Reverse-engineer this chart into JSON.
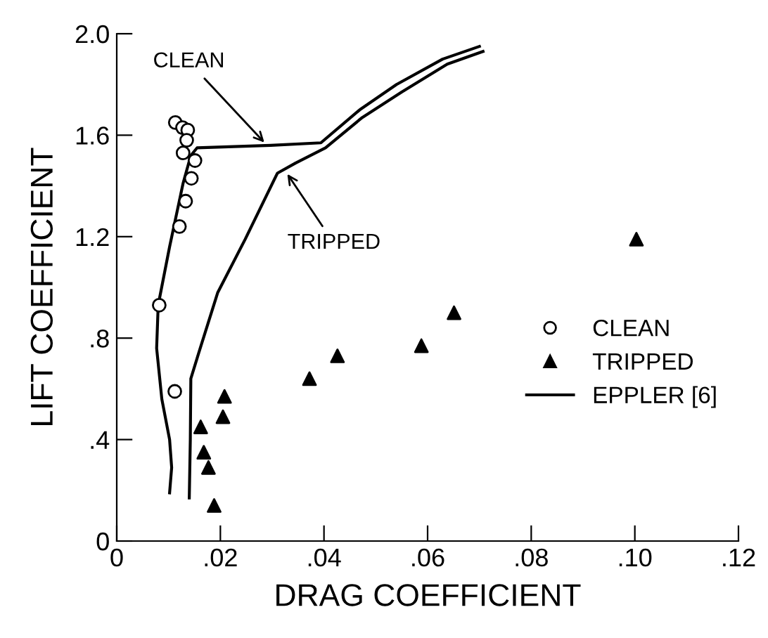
{
  "chart_data": {
    "type": "scatter",
    "xlabel": "DRAG COEFFICIENT",
    "ylabel": "LIFT COEFFICIENT",
    "series": [
      {
        "name": "CLEAN",
        "marker": "circle",
        "color": "#000000",
        "x": [
          0.0113,
          0.0127,
          0.0137,
          0.0135,
          0.0128,
          0.0151,
          0.0144,
          0.0133,
          0.0121,
          0.0082,
          0.0112
        ],
        "values": [
          1.65,
          1.63,
          1.62,
          1.58,
          1.53,
          1.5,
          1.43,
          1.34,
          1.24,
          0.93,
          0.59
        ]
      },
      {
        "name": "TRIPPED",
        "marker": "triangle",
        "color": "#000000",
        "x": [
          0.0162,
          0.0168,
          0.0177,
          0.0188,
          0.0208,
          0.0205,
          0.0372,
          0.0426,
          0.0588,
          0.0651,
          0.1003
        ],
        "values": [
          0.45,
          0.35,
          0.29,
          0.14,
          0.57,
          0.49,
          0.64,
          0.73,
          0.77,
          0.9,
          1.19
        ]
      },
      {
        "name": "EPPLER [6]",
        "type": "line",
        "marker": "none",
        "color": "#000000",
        "x": [
          0.0102,
          0.0106,
          0.0102,
          0.0087,
          0.0077,
          0.008,
          0.0102,
          0.0128,
          0.0143,
          0.0155,
          0.0297,
          0.0394,
          0.0469,
          0.054,
          0.0629,
          0.07
        ],
        "values": [
          0.19,
          0.29,
          0.4,
          0.56,
          0.76,
          0.93,
          1.16,
          1.41,
          1.52,
          1.55,
          1.56,
          1.57,
          1.7,
          1.8,
          1.9,
          1.95
        ]
      },
      {
        "type": "line",
        "marker": "none",
        "color": "#000000",
        "x": [
          0.014,
          0.0142,
          0.0143,
          0.0158,
          0.0195,
          0.0248,
          0.031,
          0.0345,
          0.0403,
          0.0474,
          0.055,
          0.0638,
          0.0707
        ],
        "values": [
          0.17,
          0.4,
          0.64,
          0.74,
          0.98,
          1.19,
          1.45,
          1.49,
          1.55,
          1.67,
          1.77,
          1.88,
          1.93
        ]
      }
    ],
    "annotations": [
      {
        "text": "CLEAN",
        "x": 0.029,
        "y": 1.56
      },
      {
        "text": "TRIPPED",
        "x": 0.0325,
        "y": 1.46
      }
    ],
    "xlim": [
      0,
      0.12
    ],
    "ylim": [
      0,
      2.0
    ],
    "xticks": [
      {
        "value": 0,
        "label": "0"
      },
      {
        "value": 0.02,
        "label": ".02"
      },
      {
        "value": 0.04,
        "label": ".04"
      },
      {
        "value": 0.06,
        "label": ".06"
      },
      {
        "value": 0.08,
        "label": ".08"
      },
      {
        "value": 0.1,
        "label": ".10"
      },
      {
        "value": 0.12,
        "label": ".12"
      }
    ],
    "yticks": [
      {
        "value": 0,
        "label": "0"
      },
      {
        "value": 0.4,
        "label": ".4"
      },
      {
        "value": 0.8,
        "label": ".8"
      },
      1.2,
      1.6,
      {
        "value": 2.0,
        "label": "2.0"
      }
    ],
    "grid": false,
    "legend": "right",
    "line_style": "solid"
  }
}
